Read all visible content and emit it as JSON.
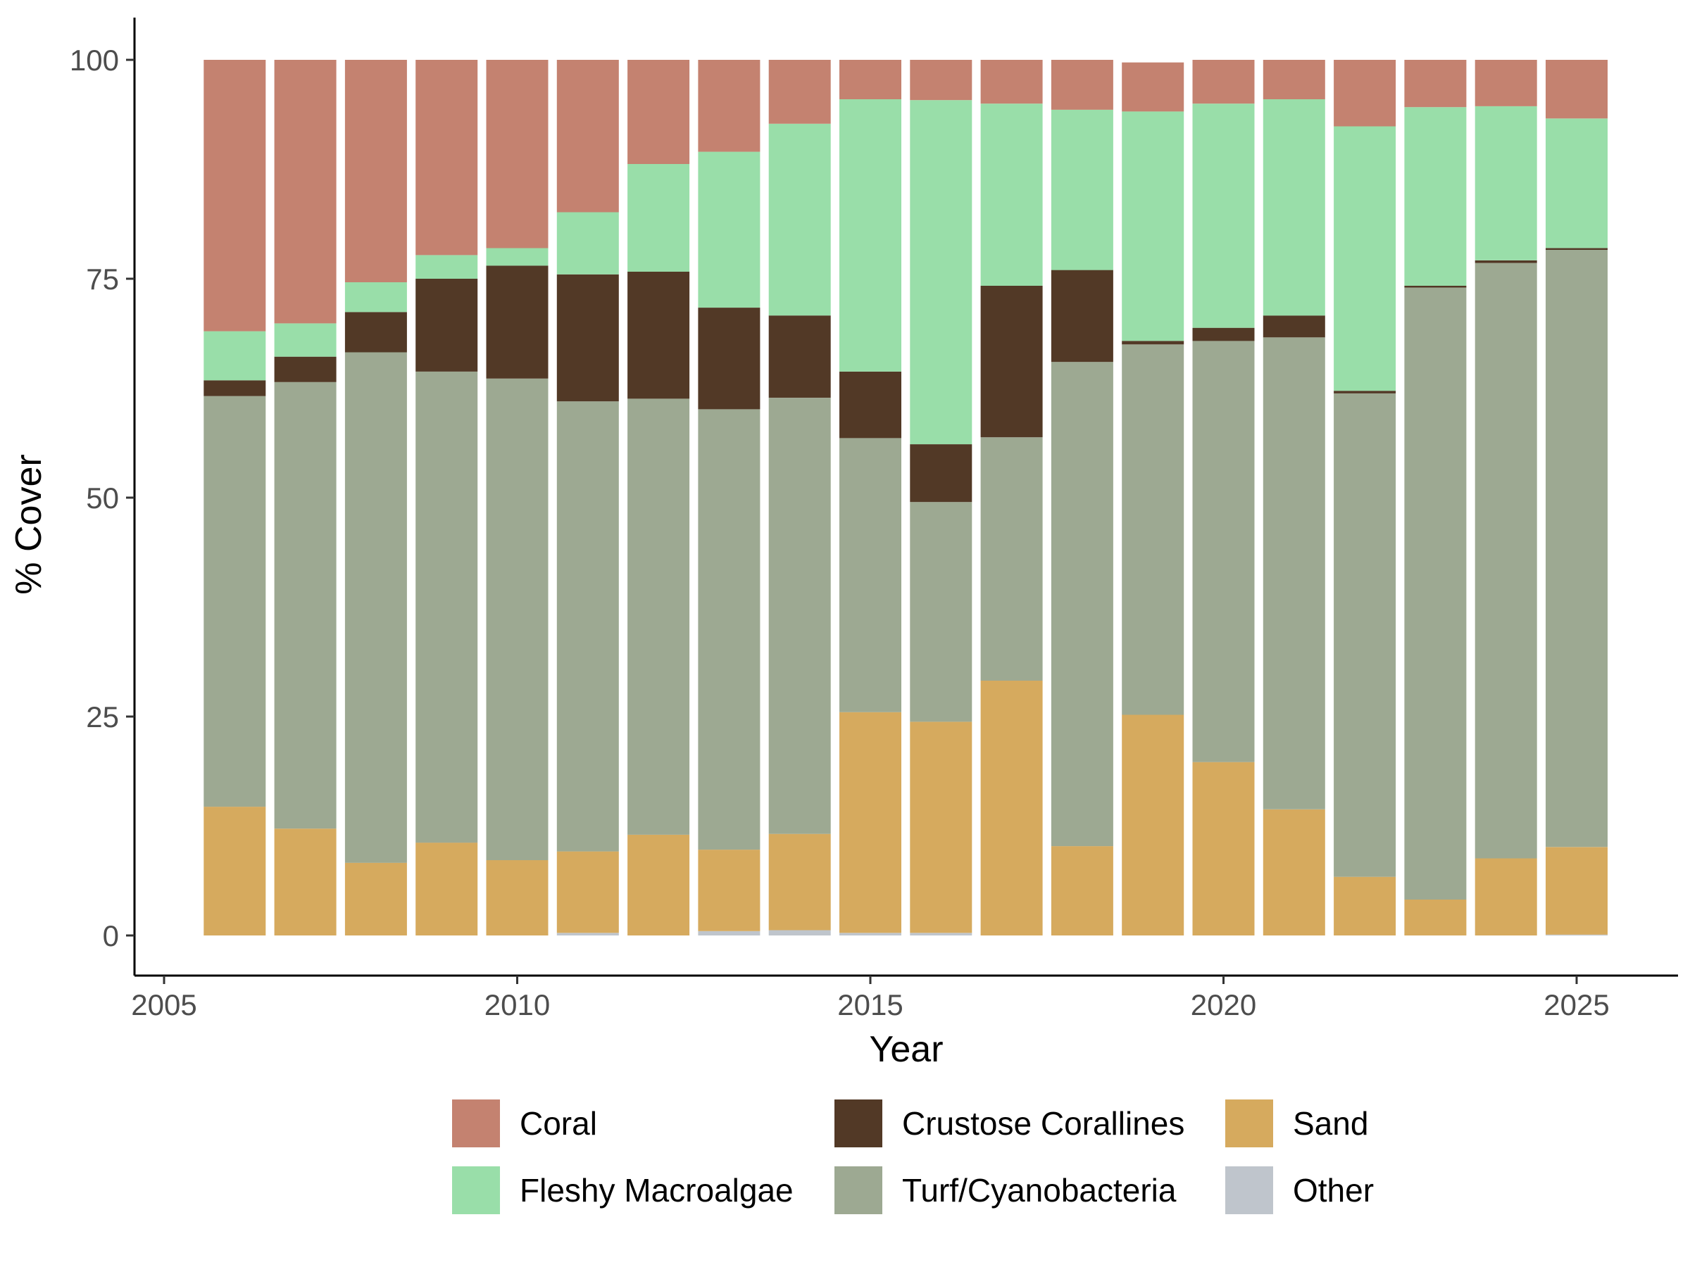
{
  "chart_data": {
    "type": "bar",
    "stacked": true,
    "xlabel": "Year",
    "ylabel": "% Cover",
    "ylim": [
      0,
      100
    ],
    "xlim": [
      2005,
      2026
    ],
    "x_ticks": [
      {
        "value": 2005,
        "label": "2005"
      },
      {
        "value": 2010,
        "label": "2010"
      },
      {
        "value": 2015,
        "label": "2015"
      },
      {
        "value": 2020,
        "label": "2020"
      },
      {
        "value": 2025,
        "label": "2025"
      }
    ],
    "y_ticks": [
      {
        "value": 0,
        "label": "0"
      },
      {
        "value": 25,
        "label": "25"
      },
      {
        "value": 50,
        "label": "50"
      },
      {
        "value": 75,
        "label": "75"
      },
      {
        "value": 100,
        "label": "100"
      }
    ],
    "legend_position": "bottom",
    "x": [
      2006,
      2007,
      2008,
      2009,
      2010,
      2011,
      2012,
      2013,
      2014,
      2015,
      2016,
      2017,
      2018,
      2019,
      2020,
      2021,
      2022,
      2023,
      2024,
      2025
    ],
    "series": [
      {
        "name": "Other",
        "color": "#bfc5cc",
        "values": [
          0,
          0,
          0,
          0,
          0,
          0.3,
          0,
          0.5,
          0.6,
          0.3,
          0.3,
          0,
          0,
          0,
          0,
          0,
          0,
          0,
          0,
          0.1
        ]
      },
      {
        "name": "Sand",
        "color": "#d6aa5e",
        "values": [
          14.7,
          12.2,
          8.3,
          10.6,
          8.6,
          9.3,
          11.5,
          9.3,
          11.0,
          25.2,
          24.1,
          29.1,
          10.2,
          25.2,
          19.8,
          14.4,
          6.7,
          4.1,
          8.8,
          10.0
        ]
      },
      {
        "name": "Turf/Cyanobacteria",
        "color": "#9da992",
        "values": [
          46.9,
          51.0,
          58.3,
          53.8,
          55.0,
          51.4,
          49.8,
          50.3,
          49.8,
          31.3,
          25.1,
          27.8,
          55.3,
          42.3,
          48.1,
          53.9,
          55.2,
          69.9,
          68.0,
          68.2
        ]
      },
      {
        "name": "Crustose Corallines",
        "color": "#523926",
        "values": [
          1.8,
          2.9,
          4.6,
          10.6,
          12.9,
          14.5,
          14.5,
          11.6,
          9.4,
          7.6,
          6.6,
          17.3,
          10.5,
          0.4,
          1.5,
          2.5,
          0.3,
          0.2,
          0.3,
          0.2
        ]
      },
      {
        "name": "Fleshy Macroalgae",
        "color": "#99dea9",
        "values": [
          5.6,
          3.8,
          3.4,
          2.7,
          2.0,
          7.1,
          12.3,
          17.8,
          21.9,
          31.1,
          39.3,
          20.8,
          18.3,
          26.2,
          25.6,
          24.7,
          30.2,
          20.4,
          17.6,
          14.8
        ]
      },
      {
        "name": "Coral",
        "color": "#c48270",
        "values": [
          31.0,
          30.1,
          25.4,
          22.3,
          21.5,
          17.4,
          11.9,
          10.5,
          7.3,
          4.5,
          4.6,
          5.0,
          5.7,
          5.6,
          5.0,
          4.5,
          7.6,
          5.4,
          5.3,
          6.7
        ]
      }
    ],
    "legend": [
      {
        "name": "Coral",
        "color": "#c48270"
      },
      {
        "name": "Crustose Corallines",
        "color": "#523926"
      },
      {
        "name": "Sand",
        "color": "#d6aa5e"
      },
      {
        "name": "Fleshy Macroalgae",
        "color": "#99dea9"
      },
      {
        "name": "Turf/Cyanobacteria",
        "color": "#9da992"
      },
      {
        "name": "Other",
        "color": "#bfc5cc"
      }
    ]
  }
}
